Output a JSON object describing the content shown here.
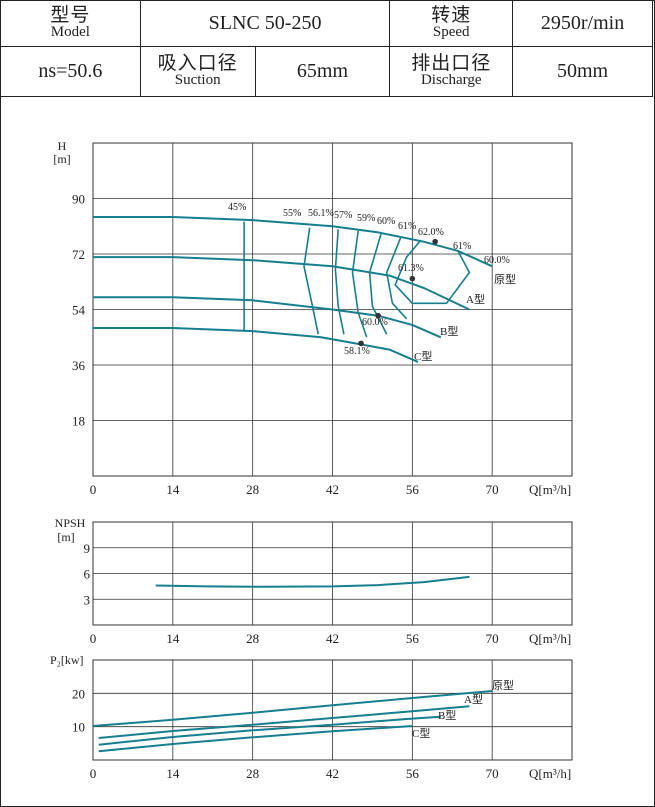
{
  "header": {
    "model_cn": "型号",
    "model_en": "Model",
    "model_value": "SLNC 50-250",
    "speed_cn": "转速",
    "speed_en": "Speed",
    "speed_value": "2950r/min",
    "ns_value": "ns=50.6",
    "suction_cn": "吸入口径",
    "suction_en": "Suction",
    "suction_value": "65mm",
    "discharge_cn": "排出口径",
    "discharge_en": "Discharge",
    "discharge_value": "50mm"
  },
  "chart_data": [
    {
      "type": "line",
      "ylabel": "H",
      "yunit": "[m]",
      "xlabel": "Q[m³/h]",
      "xlim": [
        0,
        84
      ],
      "ylim": [
        0,
        108
      ],
      "xticks": [
        0,
        14,
        28,
        42,
        56,
        70
      ],
      "yticks": [
        18,
        36,
        54,
        72,
        90
      ],
      "grid": true,
      "series": [
        {
          "name": "原型",
          "x": [
            0,
            14,
            28,
            42,
            50,
            58,
            64,
            70
          ],
          "y": [
            84,
            84,
            83,
            81,
            79,
            76,
            73,
            68
          ]
        },
        {
          "name": "A型",
          "x": [
            0,
            14,
            28,
            42,
            52,
            58,
            66
          ],
          "y": [
            71,
            71,
            70,
            68,
            65,
            61,
            54
          ]
        },
        {
          "name": "B型",
          "x": [
            0,
            14,
            28,
            42,
            50,
            56,
            61
          ],
          "y": [
            58,
            58,
            57,
            54,
            52,
            49,
            45
          ]
        },
        {
          "name": "C型",
          "x": [
            0,
            14,
            28,
            40,
            46,
            52,
            57
          ],
          "y": [
            48,
            48,
            47,
            45,
            43,
            41,
            37
          ]
        }
      ],
      "efficiency_labels": [
        "45%",
        "55%",
        "56.1%",
        "57%",
        "59%",
        "60%",
        "61%",
        "62.0%",
        "61%",
        "60.0%",
        "61.3%",
        "60.0%",
        "58.1%"
      ],
      "efficiency_contours": [
        {
          "label": "45%",
          "x": [
            26.5,
            26.5,
            26.5
          ],
          "y": [
            82.5,
            66,
            47
          ]
        },
        {
          "label": "55%",
          "x": [
            38,
            37,
            38.5,
            39.5
          ],
          "y": [
            80.5,
            68,
            55,
            46
          ]
        },
        {
          "label": "56.1%",
          "x": [
            43,
            42.5,
            43,
            44
          ],
          "y": [
            80,
            67,
            55,
            46
          ]
        },
        {
          "label": "57%",
          "x": [
            46.5,
            45.5,
            46.5,
            48
          ],
          "y": [
            79.5,
            66,
            53,
            45
          ]
        },
        {
          "label": "59%",
          "x": [
            50.5,
            48.5,
            49,
            51.5
          ],
          "y": [
            78.5,
            66,
            55,
            46
          ]
        },
        {
          "label": "60%",
          "x": [
            54,
            51.5,
            52.5,
            55
          ],
          "y": [
            77.5,
            66,
            56,
            51
          ]
        },
        {
          "label": "61%",
          "x": [
            57.5,
            55,
            53,
            56,
            62,
            66,
            64
          ],
          "y": [
            76.5,
            71,
            62,
            56,
            56,
            66,
            73
          ]
        }
      ],
      "operating_points": [
        {
          "label": "62.0%",
          "x": 60,
          "y": 76
        },
        {
          "label": "61.3%",
          "x": 56,
          "y": 64
        },
        {
          "label": "60.0%",
          "x": 50,
          "y": 52
        },
        {
          "label": "58.1%",
          "x": 47,
          "y": 43
        }
      ]
    },
    {
      "type": "line",
      "ylabel": "NPSH",
      "yunit": "[m]",
      "xlabel": "Q[m³/h]",
      "xlim": [
        0,
        84
      ],
      "ylim": [
        0,
        12
      ],
      "xticks": [
        0,
        14,
        28,
        42,
        56,
        70
      ],
      "yticks": [
        3,
        6,
        9
      ],
      "grid": true,
      "series": [
        {
          "name": "",
          "x": [
            11,
            20,
            30,
            42,
            50,
            58,
            66
          ],
          "y": [
            4.6,
            4.5,
            4.45,
            4.5,
            4.65,
            5.0,
            5.6
          ]
        }
      ]
    },
    {
      "type": "line",
      "ylabel": "P₂[kw]",
      "xlabel": "Q[m³/h]",
      "xlim": [
        0,
        84
      ],
      "ylim": [
        0,
        30
      ],
      "xticks": [
        0,
        14,
        28,
        42,
        56,
        70
      ],
      "yticks": [
        10,
        20
      ],
      "grid": true,
      "series": [
        {
          "name": "原型",
          "x": [
            0,
            14,
            28,
            42,
            56,
            70
          ],
          "y": [
            10.2,
            12.1,
            14.2,
            16.4,
            18.6,
            20.7
          ]
        },
        {
          "name": "A型",
          "x": [
            1,
            14,
            28,
            42,
            56,
            66
          ],
          "y": [
            6.6,
            8.7,
            10.6,
            12.6,
            14.6,
            16.1
          ]
        },
        {
          "name": "B型",
          "x": [
            1,
            14,
            28,
            42,
            55,
            61
          ],
          "y": [
            4.6,
            6.9,
            8.9,
            10.6,
            12.3,
            13.0
          ]
        },
        {
          "name": "C型",
          "x": [
            1,
            14,
            28,
            42,
            56
          ],
          "y": [
            2.6,
            4.8,
            6.8,
            8.6,
            10.2
          ]
        }
      ]
    }
  ],
  "colors": {
    "curve": "#167e8e",
    "grid": "#333333",
    "point": "#333333"
  }
}
